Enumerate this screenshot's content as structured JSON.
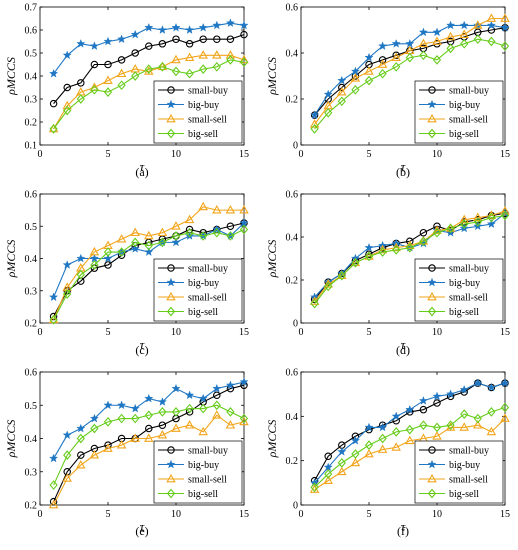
{
  "colors": {
    "small-buy": "#000000",
    "big-buy": "#1f77c4",
    "small-sell": "#f2a51a",
    "big-sell": "#66cc1a"
  },
  "markers": {
    "small-buy": "circle",
    "big-buy": "star",
    "small-sell": "triangle",
    "big-sell": "diamond"
  },
  "chart_data": [
    {
      "type": "line",
      "panel_label": "(a)",
      "xlabel": "τ",
      "ylabel": "ρMCCS",
      "xlim": [
        0,
        15
      ],
      "ylim": [
        0.1,
        0.7
      ],
      "xticks": [
        "0",
        "5",
        "10",
        "15"
      ],
      "yticks": [
        "0.1",
        "0.2",
        "0.3",
        "0.4",
        "0.5",
        "0.6",
        "0.7"
      ],
      "legend": "bottom-right",
      "x": [
        1,
        2,
        3,
        4,
        5,
        6,
        7,
        8,
        9,
        10,
        11,
        12,
        13,
        14,
        15
      ],
      "series": [
        {
          "name": "small-buy",
          "values": [
            0.28,
            0.35,
            0.37,
            0.45,
            0.45,
            0.47,
            0.5,
            0.53,
            0.54,
            0.56,
            0.54,
            0.56,
            0.56,
            0.56,
            0.58
          ]
        },
        {
          "name": "big-buy",
          "values": [
            0.41,
            0.49,
            0.54,
            0.53,
            0.55,
            0.56,
            0.58,
            0.61,
            0.6,
            0.61,
            0.6,
            0.61,
            0.62,
            0.63,
            0.62
          ]
        },
        {
          "name": "small-sell",
          "values": [
            0.17,
            0.27,
            0.33,
            0.35,
            0.38,
            0.41,
            0.43,
            0.42,
            0.44,
            0.47,
            0.48,
            0.49,
            0.49,
            0.49,
            0.47
          ]
        },
        {
          "name": "big-sell",
          "values": [
            0.17,
            0.25,
            0.3,
            0.34,
            0.33,
            0.36,
            0.4,
            0.43,
            0.44,
            0.42,
            0.41,
            0.43,
            0.44,
            0.47,
            0.46
          ]
        }
      ]
    },
    {
      "type": "line",
      "panel_label": "(b)",
      "xlabel": "τ",
      "ylabel": "ρMCCS",
      "xlim": [
        0,
        15
      ],
      "ylim": [
        0,
        0.6
      ],
      "xticks": [
        "0",
        "5",
        "10",
        "15"
      ],
      "yticks": [
        "0",
        "0.2",
        "0.4",
        "0.6"
      ],
      "legend": "bottom-right",
      "x": [
        1,
        2,
        3,
        4,
        5,
        6,
        7,
        8,
        9,
        10,
        11,
        12,
        13,
        14,
        15
      ],
      "series": [
        {
          "name": "small-buy",
          "values": [
            0.13,
            0.2,
            0.25,
            0.3,
            0.35,
            0.37,
            0.39,
            0.41,
            0.42,
            0.44,
            0.45,
            0.47,
            0.49,
            0.5,
            0.51
          ]
        },
        {
          "name": "big-buy",
          "values": [
            0.13,
            0.22,
            0.28,
            0.32,
            0.38,
            0.43,
            0.44,
            0.44,
            0.49,
            0.49,
            0.52,
            0.52,
            0.52,
            0.52,
            0.51
          ]
        },
        {
          "name": "small-sell",
          "values": [
            0.09,
            0.17,
            0.23,
            0.29,
            0.32,
            0.35,
            0.38,
            0.41,
            0.44,
            0.45,
            0.47,
            0.48,
            0.52,
            0.55,
            0.55
          ]
        },
        {
          "name": "big-sell",
          "values": [
            0.07,
            0.14,
            0.19,
            0.24,
            0.28,
            0.31,
            0.34,
            0.38,
            0.39,
            0.37,
            0.42,
            0.44,
            0.46,
            0.45,
            0.43
          ]
        }
      ]
    },
    {
      "type": "line",
      "panel_label": "(c)",
      "xlabel": "τ",
      "ylabel": "ρMCCS",
      "xlim": [
        0,
        15
      ],
      "ylim": [
        0.2,
        0.6
      ],
      "xticks": [
        "0",
        "5",
        "10",
        "15"
      ],
      "yticks": [
        "0.2",
        "0.3",
        "0.4",
        "0.5",
        "0.6"
      ],
      "legend": "bottom-right",
      "x": [
        1,
        2,
        3,
        4,
        5,
        6,
        7,
        8,
        9,
        10,
        11,
        12,
        13,
        14,
        15
      ],
      "series": [
        {
          "name": "small-buy",
          "values": [
            0.22,
            0.3,
            0.33,
            0.37,
            0.38,
            0.41,
            0.44,
            0.45,
            0.46,
            0.47,
            0.49,
            0.48,
            0.49,
            0.5,
            0.51
          ]
        },
        {
          "name": "big-buy",
          "values": [
            0.28,
            0.38,
            0.4,
            0.4,
            0.4,
            0.42,
            0.43,
            0.42,
            0.45,
            0.45,
            0.47,
            0.47,
            0.49,
            0.47,
            0.51
          ]
        },
        {
          "name": "small-sell",
          "values": [
            0.21,
            0.31,
            0.37,
            0.42,
            0.44,
            0.46,
            0.48,
            0.47,
            0.48,
            0.5,
            0.52,
            0.56,
            0.55,
            0.55,
            0.55
          ]
        },
        {
          "name": "big-sell",
          "values": [
            0.21,
            0.29,
            0.35,
            0.38,
            0.42,
            0.42,
            0.45,
            0.44,
            0.45,
            0.47,
            0.48,
            0.47,
            0.48,
            0.47,
            0.49
          ]
        }
      ]
    },
    {
      "type": "line",
      "panel_label": "(d)",
      "xlabel": "τ",
      "ylabel": "ρMCCS",
      "xlim": [
        0,
        15
      ],
      "ylim": [
        0,
        0.6
      ],
      "xticks": [
        "0",
        "5",
        "10",
        "15"
      ],
      "yticks": [
        "0",
        "0.2",
        "0.4",
        "0.6"
      ],
      "legend": "bottom-right",
      "x": [
        1,
        2,
        3,
        4,
        5,
        6,
        7,
        8,
        9,
        10,
        11,
        12,
        13,
        14,
        15
      ],
      "series": [
        {
          "name": "small-buy",
          "values": [
            0.11,
            0.19,
            0.23,
            0.29,
            0.32,
            0.35,
            0.37,
            0.38,
            0.42,
            0.45,
            0.43,
            0.47,
            0.48,
            0.5,
            0.51
          ]
        },
        {
          "name": "big-buy",
          "values": [
            0.12,
            0.19,
            0.23,
            0.3,
            0.35,
            0.36,
            0.37,
            0.35,
            0.37,
            0.43,
            0.42,
            0.44,
            0.45,
            0.46,
            0.51
          ]
        },
        {
          "name": "small-sell",
          "values": [
            0.1,
            0.18,
            0.22,
            0.28,
            0.31,
            0.34,
            0.35,
            0.36,
            0.38,
            0.43,
            0.44,
            0.48,
            0.49,
            0.5,
            0.52
          ]
        },
        {
          "name": "big-sell",
          "values": [
            0.09,
            0.17,
            0.22,
            0.28,
            0.31,
            0.33,
            0.34,
            0.35,
            0.38,
            0.42,
            0.44,
            0.46,
            0.47,
            0.49,
            0.5
          ]
        }
      ]
    },
    {
      "type": "line",
      "panel_label": "(e)",
      "xlabel": "τ",
      "ylabel": "ρMCCS",
      "xlim": [
        0,
        15
      ],
      "ylim": [
        0.2,
        0.6
      ],
      "xticks": [
        "0",
        "5",
        "10",
        "15"
      ],
      "yticks": [
        "0.2",
        "0.3",
        "0.4",
        "0.5",
        "0.6"
      ],
      "legend": "bottom-right",
      "x": [
        1,
        2,
        3,
        4,
        5,
        6,
        7,
        8,
        9,
        10,
        11,
        12,
        13,
        14,
        15
      ],
      "series": [
        {
          "name": "small-buy",
          "values": [
            0.21,
            0.3,
            0.35,
            0.37,
            0.38,
            0.4,
            0.4,
            0.43,
            0.44,
            0.46,
            0.48,
            0.51,
            0.53,
            0.55,
            0.56
          ]
        },
        {
          "name": "big-buy",
          "values": [
            0.34,
            0.41,
            0.43,
            0.46,
            0.5,
            0.5,
            0.49,
            0.52,
            0.51,
            0.55,
            0.53,
            0.52,
            0.55,
            0.56,
            0.57
          ]
        },
        {
          "name": "small-sell",
          "values": [
            0.2,
            0.28,
            0.32,
            0.35,
            0.37,
            0.38,
            0.4,
            0.4,
            0.41,
            0.43,
            0.44,
            0.42,
            0.47,
            0.44,
            0.45
          ]
        },
        {
          "name": "big-sell",
          "values": [
            0.26,
            0.35,
            0.4,
            0.43,
            0.45,
            0.46,
            0.46,
            0.47,
            0.48,
            0.48,
            0.49,
            0.49,
            0.5,
            0.48,
            0.46
          ]
        }
      ]
    },
    {
      "type": "line",
      "panel_label": "(f)",
      "xlabel": "τ",
      "ylabel": "ρMCCS",
      "xlim": [
        0,
        15
      ],
      "ylim": [
        0,
        0.6
      ],
      "xticks": [
        "0",
        "5",
        "10",
        "15"
      ],
      "yticks": [
        "0",
        "0.2",
        "0.4",
        "0.6"
      ],
      "legend": "bottom-right",
      "x": [
        1,
        2,
        3,
        4,
        5,
        6,
        7,
        8,
        9,
        10,
        11,
        12,
        13,
        14,
        15
      ],
      "series": [
        {
          "name": "small-buy",
          "values": [
            0.11,
            0.22,
            0.27,
            0.31,
            0.34,
            0.36,
            0.38,
            0.42,
            0.43,
            0.46,
            0.49,
            0.51,
            0.55,
            0.53,
            0.55
          ]
        },
        {
          "name": "big-buy",
          "values": [
            0.1,
            0.17,
            0.24,
            0.29,
            0.35,
            0.35,
            0.4,
            0.43,
            0.47,
            0.49,
            0.5,
            0.52,
            0.55,
            0.53,
            0.55
          ]
        },
        {
          "name": "small-sell",
          "values": [
            0.07,
            0.11,
            0.15,
            0.19,
            0.23,
            0.25,
            0.26,
            0.29,
            0.3,
            0.31,
            0.35,
            0.35,
            0.36,
            0.33,
            0.39
          ]
        },
        {
          "name": "big-sell",
          "values": [
            0.08,
            0.14,
            0.19,
            0.23,
            0.27,
            0.3,
            0.33,
            0.34,
            0.36,
            0.35,
            0.36,
            0.41,
            0.39,
            0.42,
            0.44
          ]
        }
      ]
    }
  ]
}
